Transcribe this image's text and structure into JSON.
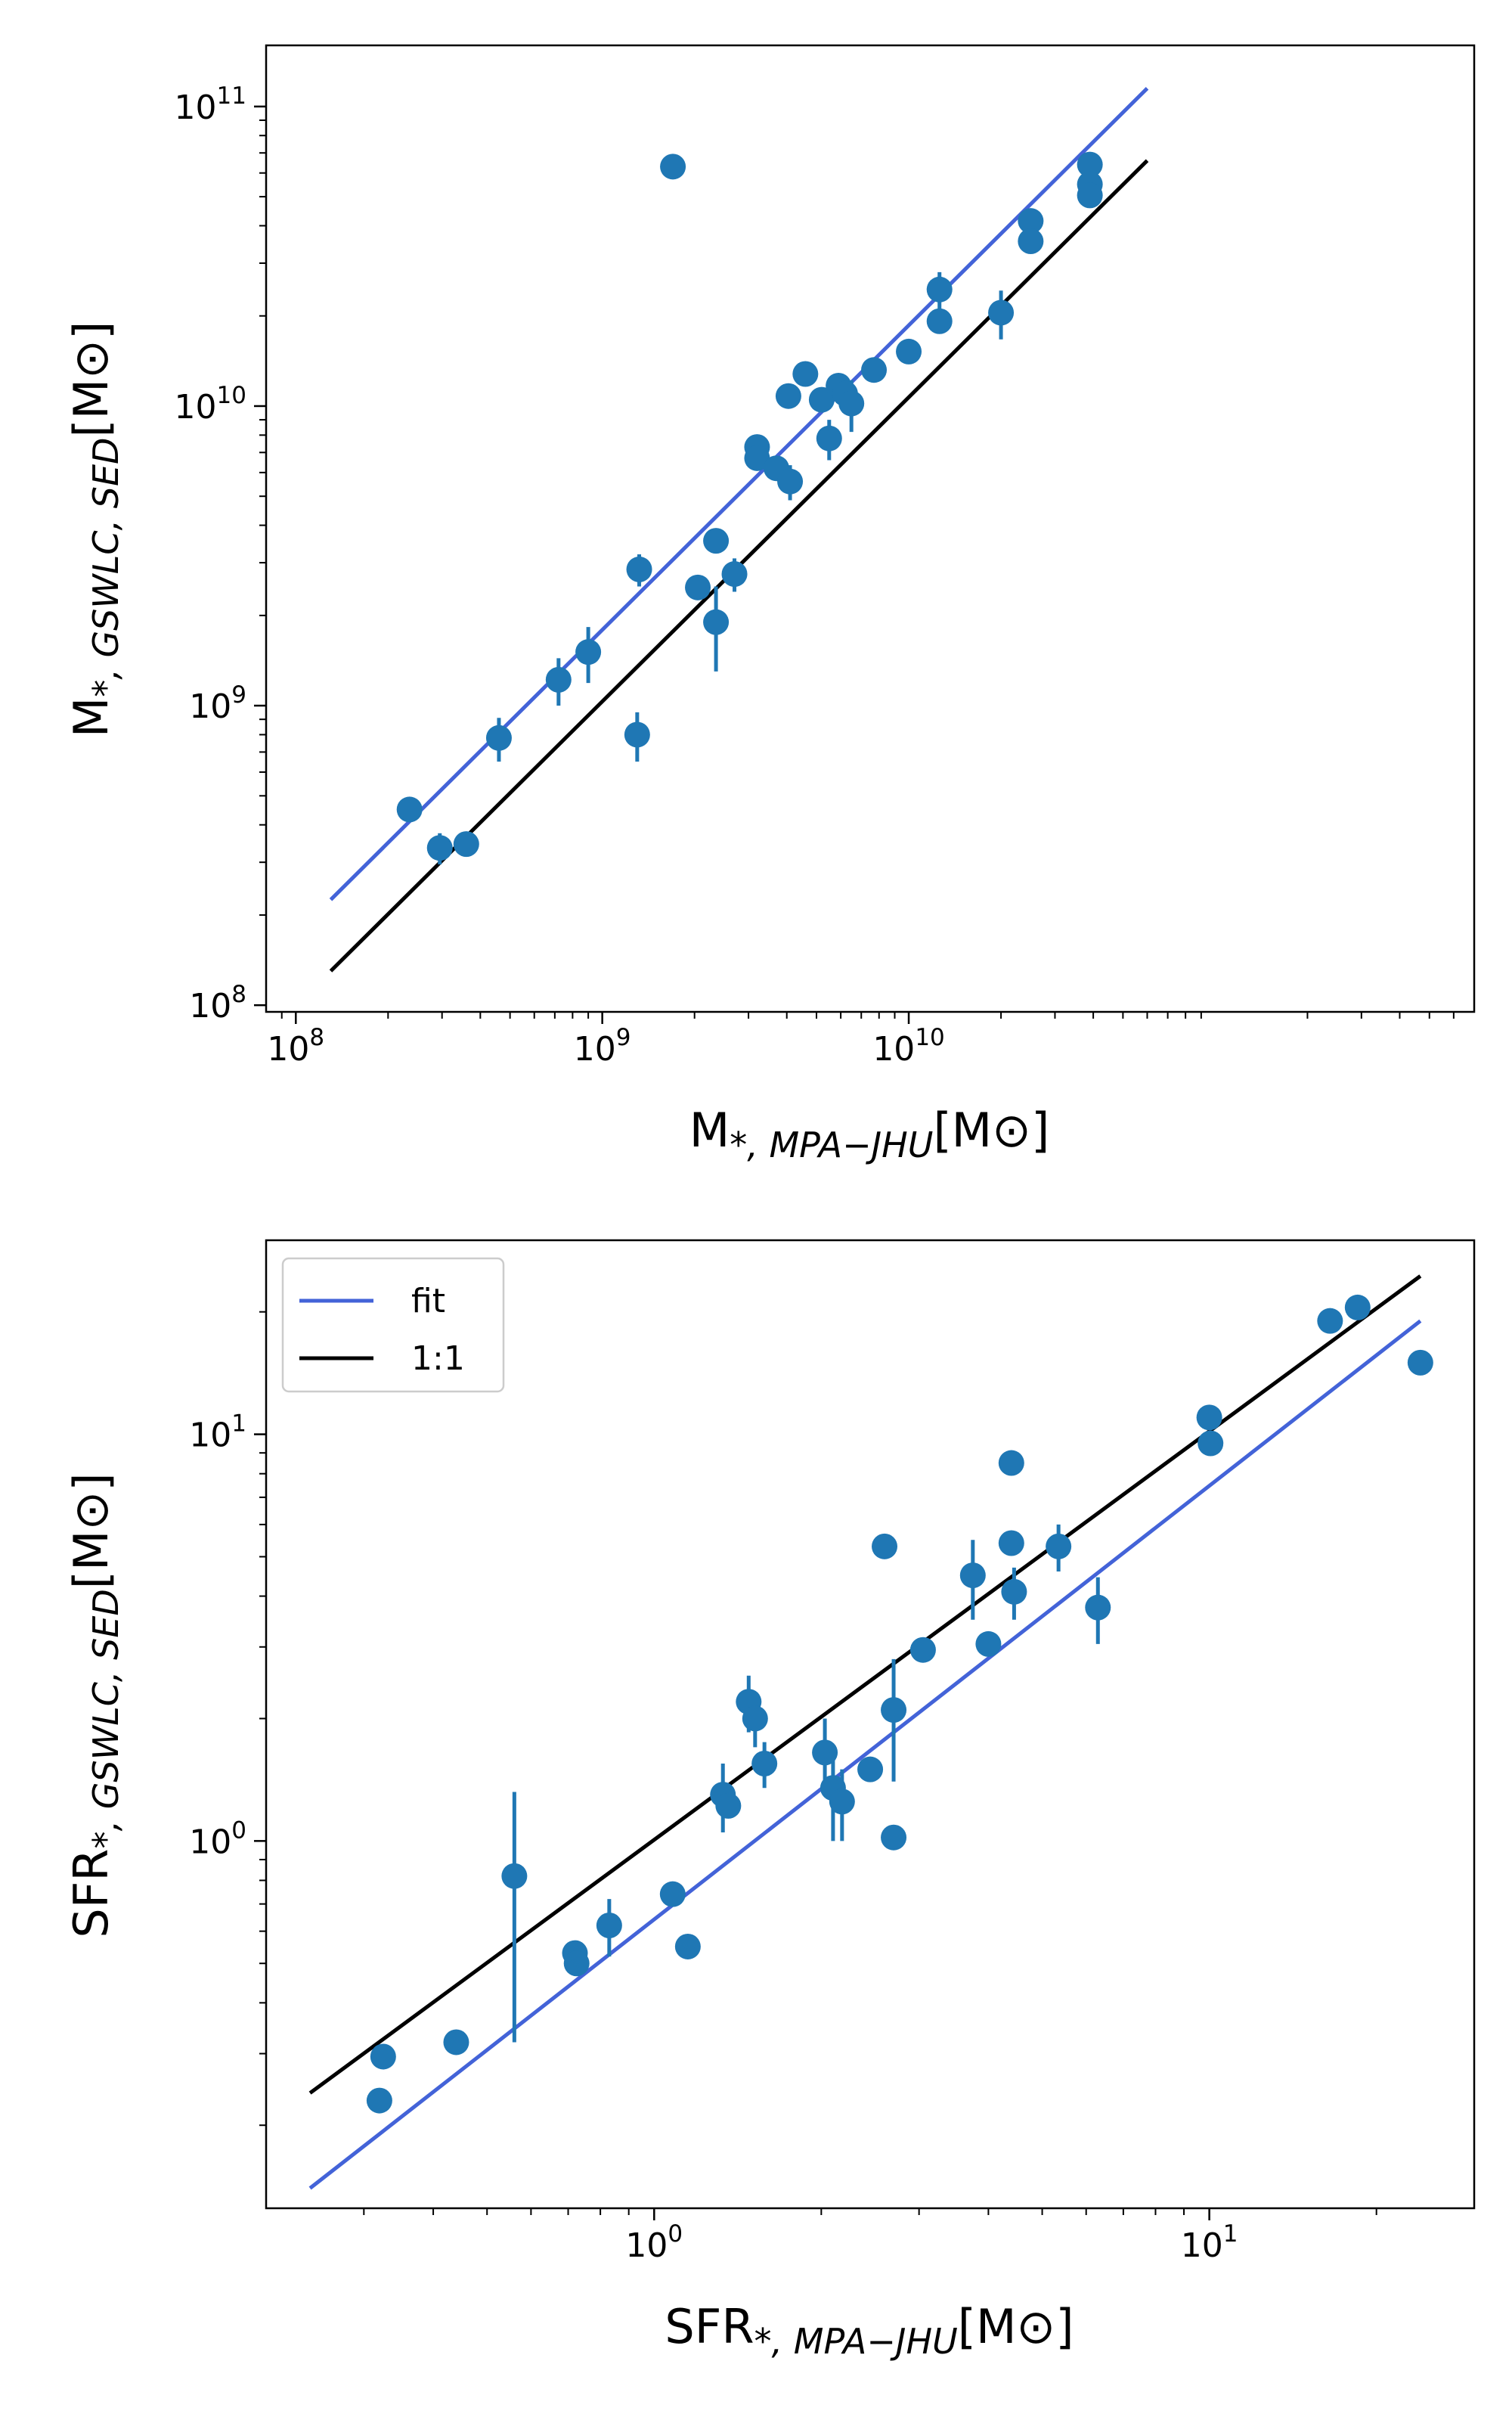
{
  "chart_data": [
    {
      "type": "scatter",
      "xscale": "log",
      "yscale": "log",
      "xlim": [
        80000000,
        700000000000
      ],
      "ylim": [
        95000000,
        160000000000
      ],
      "xlabel": {
        "main": "M",
        "sub": "*, MPA−JHU",
        "unit": "[M⊙]"
      },
      "ylabel": {
        "main": "M",
        "sub": "*, GSWLC, SED",
        "unit": "[M⊙]"
      },
      "xticks": [
        {
          "value": 100000000,
          "base": "10",
          "exp": "8"
        },
        {
          "value": 1000000000,
          "base": "10",
          "exp": "9"
        },
        {
          "value": 10000000000,
          "base": "10",
          "exp": "10"
        }
      ],
      "yticks": [
        {
          "value": 100000000,
          "base": "10",
          "exp": "8"
        },
        {
          "value": 1000000000,
          "base": "10",
          "exp": "9"
        },
        {
          "value": 10000000000,
          "base": "10",
          "exp": "10"
        },
        {
          "value": 100000000000,
          "base": "10",
          "exp": "11"
        }
      ],
      "lines": [
        {
          "name": "fit",
          "color": "#4363d8",
          "x": [
            130000000,
            60000000000
          ],
          "y": [
            225000000,
            115000000000
          ]
        },
        {
          "name": "1:1",
          "color": "#000000",
          "x": [
            130000000,
            60000000000
          ],
          "y": [
            130000000,
            66000000000
          ]
        }
      ],
      "points": [
        {
          "x": 235000000,
          "y": 450000000,
          "err": 0
        },
        {
          "x": 295000000,
          "y": 335000000,
          "err": 40000000
        },
        {
          "x": 360000000,
          "y": 345000000,
          "err": 0
        },
        {
          "x": 460000000,
          "y": 780000000,
          "err": 130000000
        },
        {
          "x": 720000000,
          "y": 1220000000,
          "err": 220000000
        },
        {
          "x": 900000000,
          "y": 1510000000,
          "err": 320000000
        },
        {
          "x": 1300000000,
          "y": 800000000,
          "err": 150000000
        },
        {
          "x": 1320000000,
          "y": 2850000000,
          "err": 350000000
        },
        {
          "x": 1700000000,
          "y": 63000000000,
          "err": 0
        },
        {
          "x": 2050000000,
          "y": 2480000000,
          "err": 0
        },
        {
          "x": 2350000000,
          "y": 3550000000,
          "err": 250000000
        },
        {
          "x": 2350000000,
          "y": 1900000000,
          "err": 600000000
        },
        {
          "x": 2700000000,
          "y": 2750000000,
          "err": 350000000
        },
        {
          "x": 3200000000,
          "y": 7300000000,
          "err": 0
        },
        {
          "x": 3200000000,
          "y": 6700000000,
          "err": 0
        },
        {
          "x": 3700000000,
          "y": 6200000000,
          "err": 0
        },
        {
          "x": 4050000000,
          "y": 10800000000,
          "err": 0
        },
        {
          "x": 4100000000,
          "y": 5600000000,
          "err": 750000000
        },
        {
          "x": 4600000000,
          "y": 12800000000,
          "err": 0
        },
        {
          "x": 5200000000,
          "y": 10500000000,
          "err": 0
        },
        {
          "x": 5500000000,
          "y": 7800000000,
          "err": 1200000000
        },
        {
          "x": 5900000000,
          "y": 11700000000,
          "err": 0
        },
        {
          "x": 6200000000,
          "y": 11000000000,
          "err": 0
        },
        {
          "x": 6500000000,
          "y": 10200000000,
          "err": 2000000000
        },
        {
          "x": 7700000000,
          "y": 13200000000,
          "err": 0
        },
        {
          "x": 10000000000,
          "y": 15200000000,
          "err": 0
        },
        {
          "x": 12600000000,
          "y": 24500000000,
          "err": 3500000000
        },
        {
          "x": 12600000000,
          "y": 19200000000,
          "err": 0
        },
        {
          "x": 20000000000,
          "y": 20500000000,
          "err": 3800000000
        },
        {
          "x": 25000000000,
          "y": 41500000000,
          "err": 0
        },
        {
          "x": 25000000000,
          "y": 35500000000,
          "err": 0
        },
        {
          "x": 39000000000,
          "y": 64000000000,
          "err": 0
        },
        {
          "x": 39000000000,
          "y": 55000000000,
          "err": 0
        },
        {
          "x": 39000000000,
          "y": 50500000000,
          "err": 0
        }
      ]
    },
    {
      "type": "scatter",
      "xscale": "log",
      "yscale": "log",
      "xlim": [
        0.2,
        30
      ],
      "ylim": [
        0.125,
        30
      ],
      "xlabel": {
        "main": "SFR",
        "sub": "*, MPA−JHU",
        "unit": "[M⊙]"
      },
      "ylabel": {
        "main": "SFR",
        "sub": "*, GSWLC, SED",
        "unit": "[M⊙]"
      },
      "xticks": [
        {
          "value": 1,
          "base": "10",
          "exp": "0"
        },
        {
          "value": 10,
          "base": "10",
          "exp": "1"
        }
      ],
      "yticks": [
        {
          "value": 1,
          "base": "10",
          "exp": "0"
        },
        {
          "value": 10,
          "base": "10",
          "exp": "1"
        }
      ],
      "legend": {
        "position": "top-left",
        "entries": [
          {
            "label": "fit",
            "color": "#4363d8"
          },
          {
            "label": "1:1",
            "color": "#000000"
          }
        ]
      },
      "lines": [
        {
          "name": "fit",
          "color": "#4363d8",
          "x": [
            0.24,
            24
          ],
          "y": [
            0.14,
            19
          ]
        },
        {
          "name": "1:1",
          "color": "#000000",
          "x": [
            0.24,
            24
          ],
          "y": [
            0.24,
            24.5
          ]
        }
      ],
      "points": [
        {
          "x": 0.32,
          "y": 0.23,
          "err": 0
        },
        {
          "x": 0.325,
          "y": 0.295,
          "err": 0
        },
        {
          "x": 0.44,
          "y": 0.32,
          "err": 0
        },
        {
          "x": 0.56,
          "y": 0.82,
          "err": 0.5
        },
        {
          "x": 0.72,
          "y": 0.53,
          "err": 0
        },
        {
          "x": 0.725,
          "y": 0.5,
          "err": 0
        },
        {
          "x": 0.83,
          "y": 0.62,
          "err": 0.1
        },
        {
          "x": 1.08,
          "y": 0.74,
          "err": 0
        },
        {
          "x": 1.15,
          "y": 0.55,
          "err": 0
        },
        {
          "x": 1.33,
          "y": 1.3,
          "err": 0.25
        },
        {
          "x": 1.36,
          "y": 1.22,
          "err": 0
        },
        {
          "x": 1.48,
          "y": 2.2,
          "err": 0.35
        },
        {
          "x": 1.52,
          "y": 2.0,
          "err": 0.3
        },
        {
          "x": 1.58,
          "y": 1.55,
          "err": 0.2
        },
        {
          "x": 2.03,
          "y": 1.65,
          "err": 0.35
        },
        {
          "x": 2.1,
          "y": 1.35,
          "err": 0.35
        },
        {
          "x": 2.18,
          "y": 1.25,
          "err": 0.25
        },
        {
          "x": 2.45,
          "y": 1.5,
          "err": 0
        },
        {
          "x": 2.6,
          "y": 5.3,
          "err": 0
        },
        {
          "x": 2.7,
          "y": 2.1,
          "err": 0.7
        },
        {
          "x": 2.7,
          "y": 1.02,
          "err": 0
        },
        {
          "x": 3.05,
          "y": 2.95,
          "err": 0
        },
        {
          "x": 3.75,
          "y": 4.5,
          "err": 1.0
        },
        {
          "x": 4.0,
          "y": 3.05,
          "err": 0
        },
        {
          "x": 4.4,
          "y": 8.5,
          "err": 0
        },
        {
          "x": 4.4,
          "y": 5.4,
          "err": 0
        },
        {
          "x": 4.45,
          "y": 4.1,
          "err": 0.6
        },
        {
          "x": 5.35,
          "y": 5.3,
          "err": 0.7
        },
        {
          "x": 6.3,
          "y": 3.75,
          "err": 0.7
        },
        {
          "x": 10.0,
          "y": 11.0,
          "err": 0
        },
        {
          "x": 10.05,
          "y": 9.5,
          "err": 0
        },
        {
          "x": 16.5,
          "y": 19.0,
          "err": 0
        },
        {
          "x": 18.5,
          "y": 20.5,
          "err": 0
        },
        {
          "x": 24.0,
          "y": 15.0,
          "err": 0
        }
      ]
    }
  ],
  "colors": {
    "marker": "#1f77b4",
    "fit": "#4363d8",
    "identity": "#000000"
  }
}
